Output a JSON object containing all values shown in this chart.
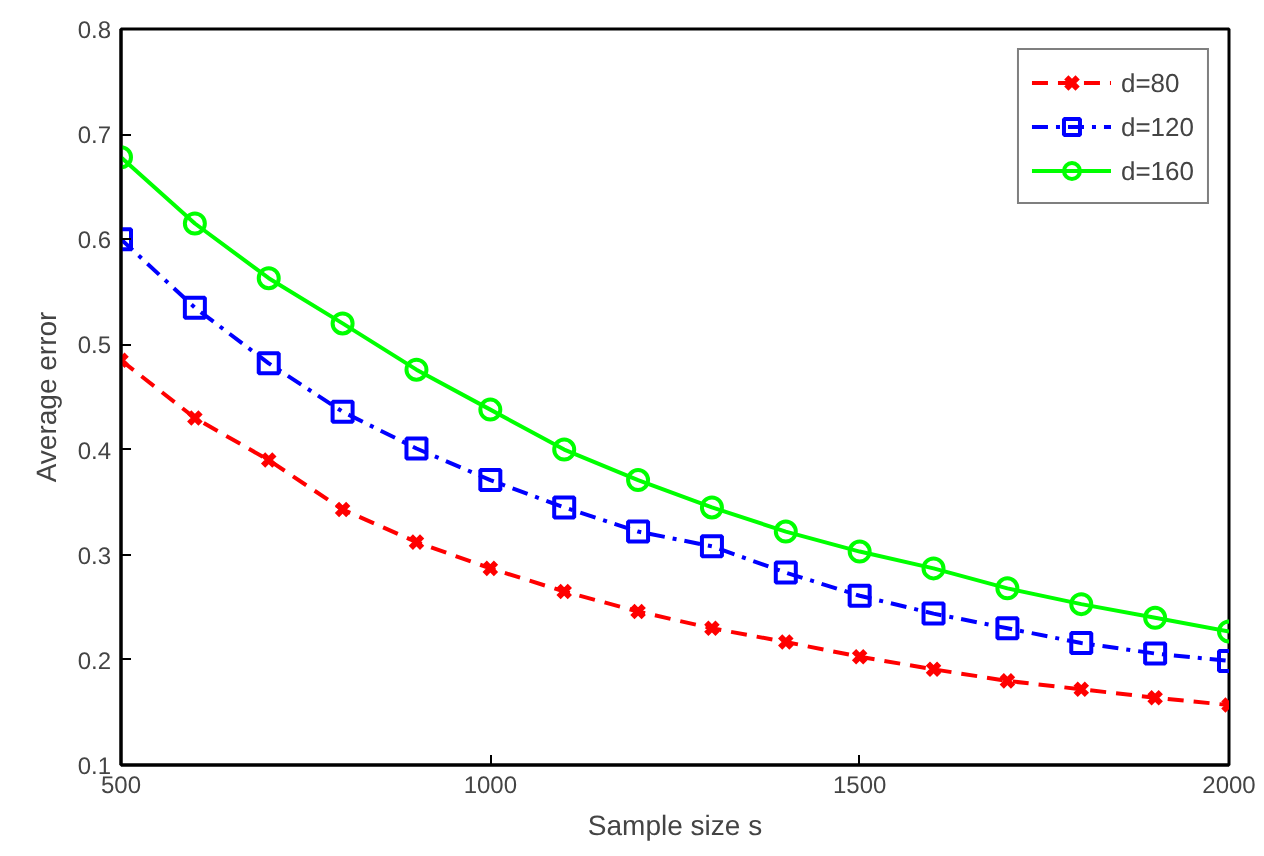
{
  "chart_data": {
    "type": "line",
    "xlabel": "Sample size s",
    "ylabel": "Average error",
    "x": [
      500,
      600,
      700,
      800,
      900,
      1000,
      1100,
      1200,
      1300,
      1400,
      1500,
      1600,
      1700,
      1800,
      1900,
      2000
    ],
    "series": [
      {
        "name": "d=80",
        "color": "#ff0000",
        "marker": "cross",
        "line_style": "dashed",
        "values": [
          0.485,
          0.43,
          0.39,
          0.343,
          0.312,
          0.287,
          0.265,
          0.246,
          0.23,
          0.217,
          0.203,
          0.191,
          0.18,
          0.172,
          0.164,
          0.157
        ]
      },
      {
        "name": "d=120",
        "color": "#0000ff",
        "marker": "square",
        "line_style": "dashdot",
        "values": [
          0.6,
          0.535,
          0.482,
          0.436,
          0.401,
          0.371,
          0.345,
          0.322,
          0.308,
          0.283,
          0.261,
          0.244,
          0.23,
          0.216,
          0.206,
          0.199
        ]
      },
      {
        "name": "d=160",
        "color": "#00ff00",
        "marker": "circle",
        "line_style": "solid",
        "values": [
          0.678,
          0.615,
          0.563,
          0.52,
          0.476,
          0.438,
          0.4,
          0.371,
          0.345,
          0.322,
          0.303,
          0.287,
          0.268,
          0.253,
          0.24,
          0.227
        ]
      }
    ],
    "xlim": [
      500,
      2000
    ],
    "ylim": [
      0.1,
      0.8
    ],
    "xticks": [
      500,
      1000,
      1500,
      2000
    ],
    "yticks": [
      0.1,
      0.2,
      0.3,
      0.4,
      0.5,
      0.6,
      0.7,
      0.8
    ],
    "grid": false,
    "legend": "top right"
  }
}
